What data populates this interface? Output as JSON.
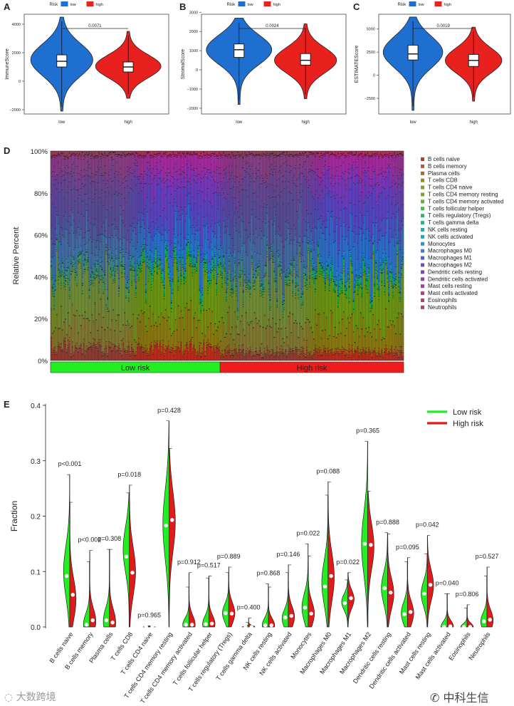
{
  "chart_data": [
    {
      "panel": "A",
      "type": "violin",
      "ylabel": "ImmuneScore",
      "legend_title": "Risk",
      "legend": [
        "low",
        "high"
      ],
      "categories": [
        "low",
        "high"
      ],
      "ylim": [
        -2300,
        4700
      ],
      "ticks": [
        -2000,
        0,
        2000,
        4000
      ],
      "tick_labels": [
        "−2000",
        "0",
        "2000",
        "4000"
      ],
      "pvalue": "0.0071",
      "groups": [
        {
          "name": "low",
          "color": "#1f6fd1",
          "min": -2100,
          "q1": 1000,
          "median": 1400,
          "q3": 1850,
          "max": 4500,
          "mode": 1500,
          "width": 0.95
        },
        {
          "name": "high",
          "color": "#e8201e",
          "min": -1200,
          "q1": 650,
          "median": 1000,
          "q3": 1350,
          "max": 3500,
          "mode": 1050,
          "width": 1.0
        }
      ]
    },
    {
      "panel": "B",
      "type": "violin",
      "ylabel": "StromalScore",
      "legend_title": "Risk",
      "legend": [
        "low",
        "high"
      ],
      "categories": [
        "low",
        "high"
      ],
      "ylim": [
        -2300,
        2900
      ],
      "ticks": [
        -2000,
        -1000,
        0,
        1000,
        2000,
        3000
      ],
      "tick_labels": [
        "−2000",
        "−1000",
        "0",
        "1000",
        "2000",
        "3000"
      ],
      "pvalue": "0.0024",
      "groups": [
        {
          "name": "low",
          "color": "#1f6fd1",
          "min": -1800,
          "q1": 650,
          "median": 1050,
          "q3": 1350,
          "max": 2700,
          "mode": 1050,
          "width": 1.0
        },
        {
          "name": "high",
          "color": "#e8201e",
          "min": -1500,
          "q1": 250,
          "median": 500,
          "q3": 850,
          "max": 2400,
          "mode": 500,
          "width": 0.95
        }
      ]
    },
    {
      "panel": "C",
      "type": "violin",
      "ylabel": "ESTIMATEScore",
      "legend_title": "Risk",
      "legend": [
        "low",
        "high"
      ],
      "categories": [
        "low",
        "high"
      ],
      "ylim": [
        -4200,
        6600
      ],
      "ticks": [
        -2500,
        0,
        2500,
        5000
      ],
      "tick_labels": [
        "−2500",
        "0",
        "2500",
        "5000"
      ],
      "pvalue": "0.0019",
      "groups": [
        {
          "name": "low",
          "color": "#1f6fd1",
          "min": -3800,
          "q1": 1650,
          "median": 2300,
          "q3": 3250,
          "max": 6300,
          "mode": 2500,
          "width": 1.0
        },
        {
          "name": "high",
          "color": "#e8201e",
          "min": -2800,
          "q1": 950,
          "median": 1600,
          "q3": 2250,
          "max": 5200,
          "mode": 1600,
          "width": 0.95
        }
      ]
    },
    {
      "panel": "D",
      "type": "stacked_bar",
      "ylabel": "Relative Percent",
      "ylim": [
        0,
        100
      ],
      "tick_labels": [
        "0%",
        "20%",
        "40%",
        "60%",
        "80%",
        "100%"
      ],
      "groups": [
        {
          "label": "Low risk",
          "color": "#22ee22",
          "samples": 120
        },
        {
          "label": "High risk",
          "color": "#ee1c1c",
          "samples": 130
        }
      ],
      "series": [
        {
          "name": "B cells naive",
          "color": "#c0392b",
          "mean": 4.4
        },
        {
          "name": "B cells memory",
          "color": "#c7502f",
          "mean": 0.6
        },
        {
          "name": "Plasma cells",
          "color": "#b3661f",
          "mean": 1.5
        },
        {
          "name": "T cells CD8",
          "color": "#9a8a1c",
          "mean": 11
        },
        {
          "name": "T cells CD4 naive",
          "color": "#8f9e22",
          "mean": 0.3
        },
        {
          "name": "T cells CD4 memory resting",
          "color": "#7fa81f",
          "mean": 19
        },
        {
          "name": "T cells CD4 memory activated",
          "color": "#5db832",
          "mean": 0.8
        },
        {
          "name": "T cells follicular helper",
          "color": "#3fbf45",
          "mean": 0.9
        },
        {
          "name": "T cells regulatory (Tregs)",
          "color": "#2ab86a",
          "mean": 2.6
        },
        {
          "name": "T cells gamma delta",
          "color": "#22b88e",
          "mean": 0.2
        },
        {
          "name": "NK cells resting",
          "color": "#20b0ac",
          "mean": 0.5
        },
        {
          "name": "NK cells activated",
          "color": "#22a7c6",
          "mean": 0.8
        },
        {
          "name": "Monocytes",
          "color": "#2a98d4",
          "mean": 2.2
        },
        {
          "name": "Macrophages M0",
          "color": "#3b7fd4",
          "mean": 10.5
        },
        {
          "name": "Macrophages M1",
          "color": "#4d64cf",
          "mean": 4.8
        },
        {
          "name": "Macrophages M2",
          "color": "#6650c8",
          "mean": 15
        },
        {
          "name": "Dendritic cells resting",
          "color": "#8146c0",
          "mean": 7.5
        },
        {
          "name": "Dendritic cells activated",
          "color": "#9a3fb6",
          "mean": 3
        },
        {
          "name": "Mast cells resting",
          "color": "#ad3aa6",
          "mean": 7
        },
        {
          "name": "Mast cells activated",
          "color": "#b8378f",
          "mean": 0.6
        },
        {
          "name": "Eosinophils",
          "color": "#bf3a78",
          "mean": 0.3
        },
        {
          "name": "Neutrophils",
          "color": "#c23d63",
          "mean": 1.3
        }
      ]
    },
    {
      "panel": "E",
      "type": "split_violin",
      "ylabel": "Fraction",
      "ylim": [
        0,
        0.4
      ],
      "tick_labels": [
        "0.0",
        "0.1",
        "0.2",
        "0.3",
        "0.4"
      ],
      "legend": [
        {
          "label": "Low risk",
          "color": "#22ee22"
        },
        {
          "label": "High risk",
          "color": "#e01b1b"
        }
      ],
      "groups": [
        {
          "name": "B cells naive",
          "p": "p<0.001",
          "sig": true,
          "low": {
            "median": 0.092,
            "max": 0.275,
            "mode": 0.1
          },
          "high": {
            "median": 0.058,
            "max": 0.225,
            "mode": 0.05
          }
        },
        {
          "name": "B cells memory",
          "p": "p<0.001",
          "sig": true,
          "low": {
            "median": 0.004,
            "max": 0.118,
            "mode": 0.004
          },
          "high": {
            "median": 0.012,
            "max": 0.138,
            "mode": 0.01
          }
        },
        {
          "name": "Plasma cells",
          "p": "p=0.308",
          "sig": false,
          "low": {
            "median": 0.012,
            "max": 0.14,
            "mode": 0.01
          },
          "high": {
            "median": 0.008,
            "max": 0.14,
            "mode": 0.008
          }
        },
        {
          "name": "T cells CD8",
          "p": "p=0.018",
          "sig": true,
          "low": {
            "median": 0.127,
            "max": 0.242,
            "mode": 0.14
          },
          "high": {
            "median": 0.098,
            "max": 0.256,
            "mode": 0.1
          }
        },
        {
          "name": "T cells CD4 naive",
          "p": "p=0.965",
          "sig": false,
          "low": {
            "median": 0.0,
            "max": 0.002,
            "mode": 0.0
          },
          "high": {
            "median": 0.0,
            "max": 0.002,
            "mode": 0.0
          }
        },
        {
          "name": "T cells CD4 memory resting",
          "p": "p=0.428",
          "sig": false,
          "low": {
            "median": 0.183,
            "max": 0.372,
            "mode": 0.185
          },
          "high": {
            "median": 0.193,
            "max": 0.322,
            "mode": 0.19
          }
        },
        {
          "name": "T cells CD4 memory activated",
          "p": "p=0.912",
          "sig": false,
          "low": {
            "median": 0.004,
            "max": 0.072,
            "mode": 0.004
          },
          "high": {
            "median": 0.004,
            "max": 0.098,
            "mode": 0.004
          }
        },
        {
          "name": "T cells follicular helper",
          "p": "p=0.517",
          "sig": false,
          "low": {
            "median": 0.005,
            "max": 0.088,
            "mode": 0.005
          },
          "high": {
            "median": 0.006,
            "max": 0.092,
            "mode": 0.005
          }
        },
        {
          "name": "T cells regulatory (Tregs)",
          "p": "p=0.889",
          "sig": false,
          "low": {
            "median": 0.025,
            "max": 0.098,
            "mode": 0.025
          },
          "high": {
            "median": 0.024,
            "max": 0.108,
            "mode": 0.025
          }
        },
        {
          "name": "T cells gamma delta",
          "p": "p=0.400",
          "sig": false,
          "low": {
            "median": 0.0,
            "max": 0.008,
            "mode": 0.0
          },
          "high": {
            "median": 0.0,
            "max": 0.016,
            "mode": 0.0
          }
        },
        {
          "name": "NK cells resting",
          "p": "p=0.868",
          "sig": false,
          "low": {
            "median": 0.003,
            "max": 0.078,
            "mode": 0.003
          },
          "high": {
            "median": 0.003,
            "max": 0.072,
            "mode": 0.003
          }
        },
        {
          "name": "NK cells activated",
          "p": "p=0.146",
          "sig": false,
          "low": {
            "median": 0.017,
            "max": 0.098,
            "mode": 0.015
          },
          "high": {
            "median": 0.02,
            "max": 0.112,
            "mode": 0.018
          }
        },
        {
          "name": "Monocytes",
          "p": "p=0.022",
          "sig": true,
          "low": {
            "median": 0.035,
            "max": 0.15,
            "mode": 0.035
          },
          "high": {
            "median": 0.024,
            "max": 0.128,
            "mode": 0.024
          }
        },
        {
          "name": "Macrophages M0",
          "p": "p=0.088",
          "sig": false,
          "low": {
            "median": 0.073,
            "max": 0.238,
            "mode": 0.08
          },
          "high": {
            "median": 0.092,
            "max": 0.262,
            "mode": 0.09
          }
        },
        {
          "name": "Macrophages M1",
          "p": "p=0.022",
          "sig": true,
          "low": {
            "median": 0.043,
            "max": 0.085,
            "mode": 0.045
          },
          "high": {
            "median": 0.052,
            "max": 0.098,
            "mode": 0.05
          }
        },
        {
          "name": "Macrophages M2",
          "p": "p=0.365",
          "sig": false,
          "low": {
            "median": 0.15,
            "max": 0.335,
            "mode": 0.15
          },
          "high": {
            "median": 0.148,
            "max": 0.245,
            "mode": 0.145
          }
        },
        {
          "name": "Dendritic cells resting",
          "p": "p=0.888",
          "sig": false,
          "low": {
            "median": 0.07,
            "max": 0.17,
            "mode": 0.07
          },
          "high": {
            "median": 0.062,
            "max": 0.168,
            "mode": 0.06
          }
        },
        {
          "name": "Dendritic cells activated",
          "p": "p=0.095",
          "sig": false,
          "low": {
            "median": 0.023,
            "max": 0.118,
            "mode": 0.025
          },
          "high": {
            "median": 0.027,
            "max": 0.125,
            "mode": 0.025
          }
        },
        {
          "name": "Mast cells resting",
          "p": "p=0.042",
          "sig": true,
          "low": {
            "median": 0.06,
            "max": 0.132,
            "mode": 0.06
          },
          "high": {
            "median": 0.076,
            "max": 0.165,
            "mode": 0.075
          }
        },
        {
          "name": "Mast cells activated",
          "p": "p=0.040",
          "sig": true,
          "low": {
            "median": 0.0,
            "max": 0.06,
            "mode": 0.0
          },
          "high": {
            "median": 0.001,
            "max": 0.06,
            "mode": 0.001
          }
        },
        {
          "name": "Eosinophils",
          "p": "p=0.806",
          "sig": false,
          "low": {
            "median": 0.0,
            "max": 0.034,
            "mode": 0.0
          },
          "high": {
            "median": 0.0,
            "max": 0.04,
            "mode": 0.0
          }
        },
        {
          "name": "Neutrophils",
          "p": "p=0.527",
          "sig": false,
          "low": {
            "median": 0.01,
            "max": 0.092,
            "mode": 0.01
          },
          "high": {
            "median": 0.013,
            "max": 0.108,
            "mode": 0.012
          }
        }
      ]
    }
  ],
  "watermarks": {
    "left": "大数跨境",
    "right": "中科生信"
  }
}
